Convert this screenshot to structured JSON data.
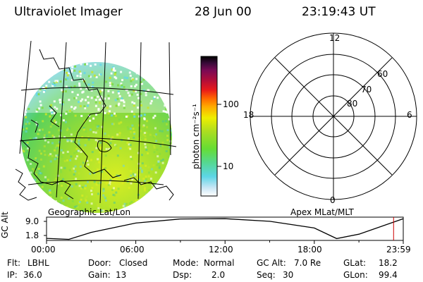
{
  "header": {
    "instrument": "Ultraviolet Imager",
    "date": "28 Jun 00",
    "time": "23:19:43 UT"
  },
  "image_panel": {
    "label": "Geographic Lat/Lon"
  },
  "color_bar": {
    "unit_label": "photon cm⁻²s⁻¹",
    "tick_labels": [
      "100",
      "10"
    ],
    "scale": "log",
    "colors": [
      "#ffffff",
      "#c8e6f5",
      "#5cd6e6",
      "#55d890",
      "#66dd33",
      "#aadd22",
      "#eeee00",
      "#ffaa00",
      "#ff6600",
      "#e81a1a",
      "#b00d3a",
      "#7a0a55",
      "#3a0a3a",
      "#000000"
    ]
  },
  "polar_plot": {
    "label": "Apex MLat/MLT",
    "mlt_labels": [
      "12",
      "18",
      "6",
      "0"
    ],
    "mlat_labels": [
      "60",
      "70",
      "80"
    ]
  },
  "altitude_strip": {
    "ylabel": "GC Alt",
    "ytick_labels": [
      "9.0",
      "1.8"
    ],
    "xtick_labels": [
      "00:00",
      "06:00",
      "12:00",
      "18:00",
      "23:59"
    ]
  },
  "chart_data": {
    "type": "line",
    "xlabel": "",
    "ylabel": "GC Alt",
    "x": [
      0,
      1.5,
      3,
      6,
      9,
      12,
      15,
      18,
      19.5,
      21,
      23.98
    ],
    "y": [
      1.4,
      1.0,
      3.7,
      7.3,
      8.9,
      9.0,
      8.0,
      5.4,
      1.3,
      3.0,
      9.0
    ],
    "xlim": [
      0,
      23.98
    ],
    "ylim": [
      0.6,
      9.6
    ],
    "marker_x": 23.33,
    "marker_color": "#cc0000"
  },
  "status": {
    "flt_label": "Flt:",
    "flt_value": "LBHL",
    "ip_label": "IP:",
    "ip_value": "36.0",
    "door_label": "Door:",
    "door_value": "Closed",
    "gain_label": "Gain:",
    "gain_value": "13",
    "mode_label": "Mode:",
    "mode_value": "Normal",
    "dsp_label": "Dsp:",
    "dsp_value": "2.0",
    "gcalt_label": "GC Alt:",
    "gcalt_value": "7.0 Re",
    "seq_label": "Seq:",
    "seq_value": "30",
    "glat_label": "GLat:",
    "glat_value": "18.2",
    "glon_label": "GLon:",
    "glon_value": "99.4"
  }
}
